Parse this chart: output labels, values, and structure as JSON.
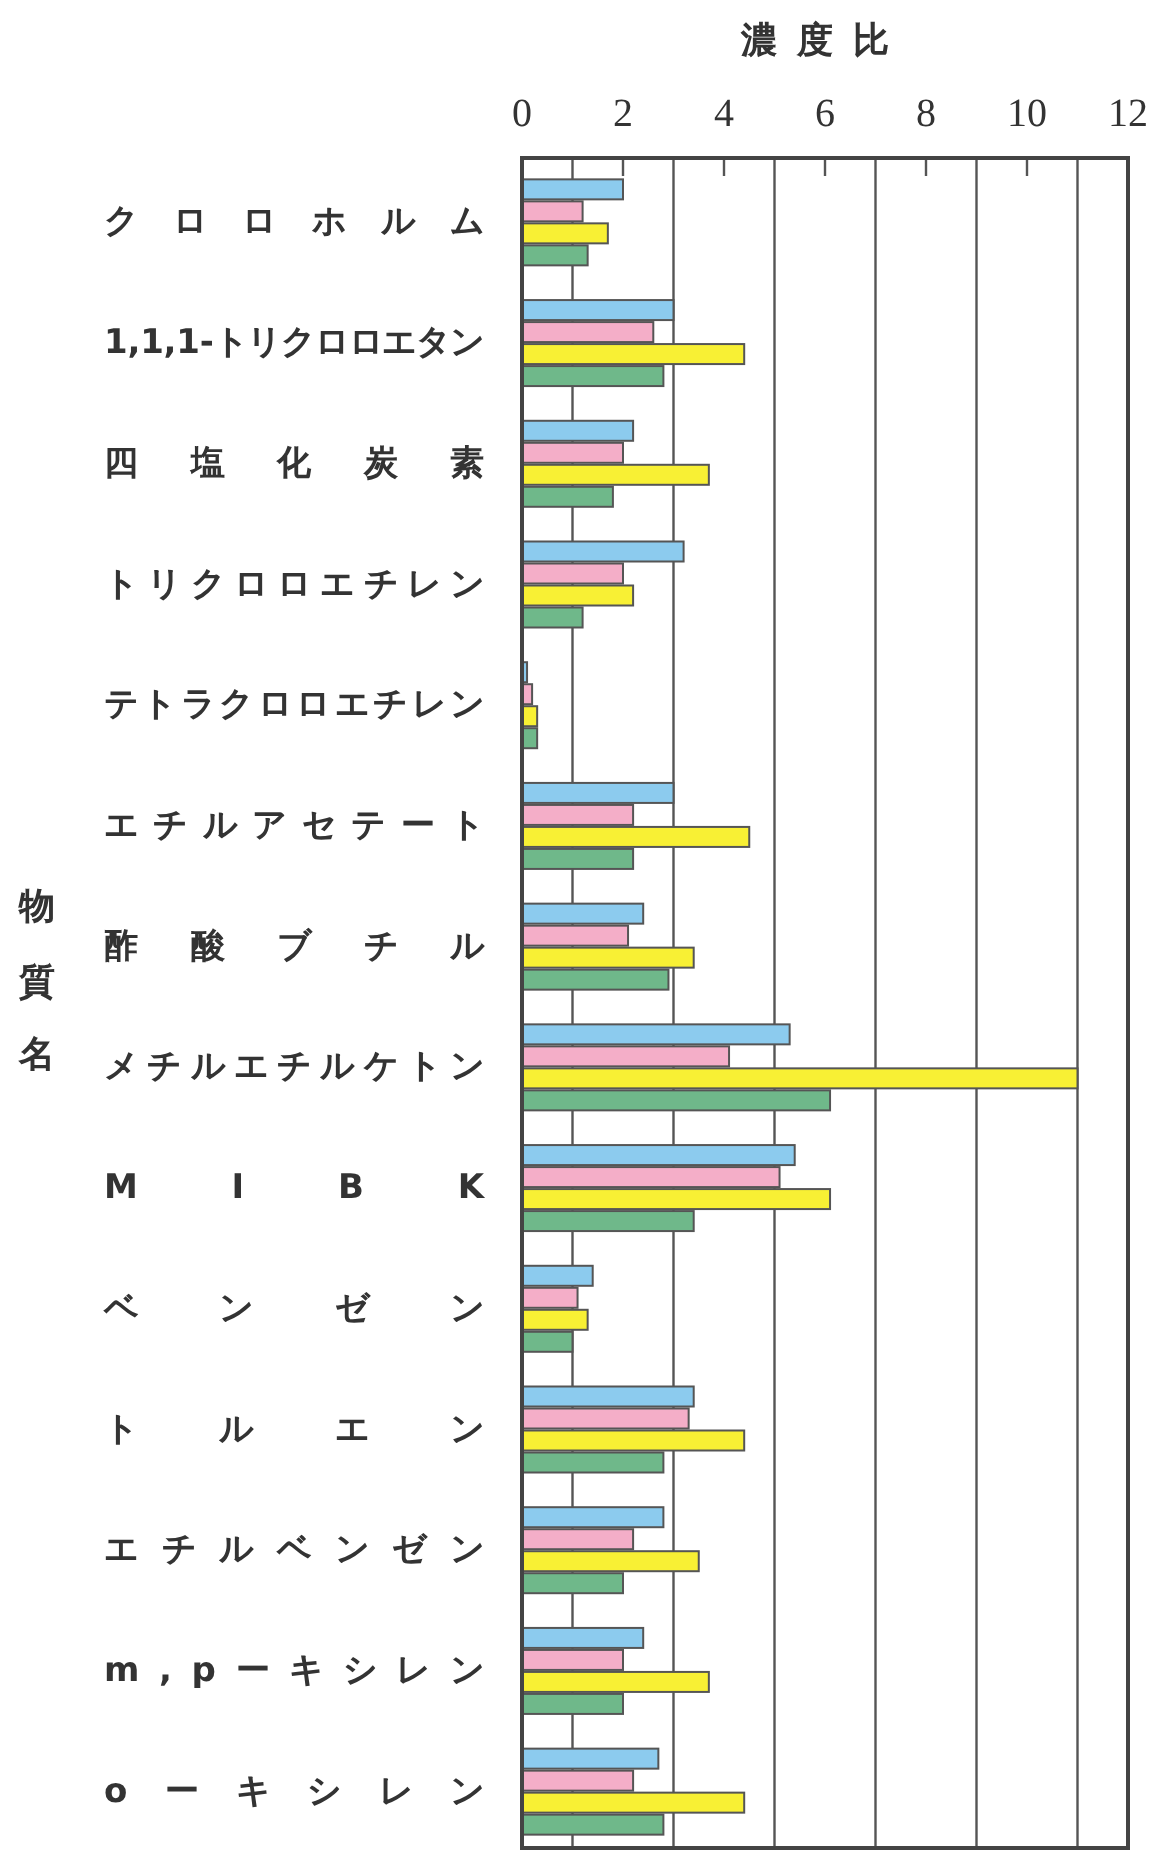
{
  "chart_data": {
    "type": "bar",
    "orientation": "horizontal",
    "xlabel": "濃度比",
    "ylabel": "物質名",
    "categories": [
      "クロロホルム",
      "1,1,1-トリクロロエタン",
      "四塩化炭素",
      "トリクロロエチレン",
      "テトラクロロエチレン",
      "エチルアセテート",
      "酢酸ブチル",
      "メチルエチルケトン",
      "MIBK",
      "ベンゼン",
      "トルエン",
      "エチルベンゼン",
      "m,pーキシレン",
      "oーキシレン"
    ],
    "series": [
      {
        "color": "#8ccbee",
        "values": [
          2.0,
          3.0,
          2.2,
          3.2,
          0.1,
          3.0,
          2.4,
          5.3,
          5.4,
          1.4,
          3.4,
          2.8,
          2.4,
          2.7
        ]
      },
      {
        "color": "#f4aec8",
        "values": [
          1.2,
          2.6,
          2.0,
          2.0,
          0.2,
          2.2,
          2.1,
          4.1,
          5.1,
          1.1,
          3.3,
          2.2,
          2.0,
          2.2
        ]
      },
      {
        "color": "#f8f034",
        "values": [
          1.7,
          4.4,
          3.7,
          2.2,
          0.3,
          4.5,
          3.4,
          11.0,
          6.1,
          1.3,
          4.4,
          3.5,
          3.7,
          4.4
        ]
      },
      {
        "color": "#6fb88a",
        "values": [
          1.3,
          2.8,
          1.8,
          1.2,
          0.3,
          2.2,
          2.9,
          6.1,
          3.4,
          1.0,
          2.8,
          2.0,
          2.0,
          2.8
        ]
      }
    ],
    "xlim": [
      0,
      12
    ],
    "xticks": [
      0,
      {
        "value": 1,
        "label": null
      },
      2,
      {
        "value": 3,
        "label": null
      },
      4,
      {
        "value": 5,
        "label": null
      },
      6,
      {
        "value": 7,
        "label": null
      },
      8,
      {
        "value": 9,
        "label": null
      },
      10,
      {
        "value": 11,
        "label": null
      },
      12
    ],
    "grid": "x"
  }
}
